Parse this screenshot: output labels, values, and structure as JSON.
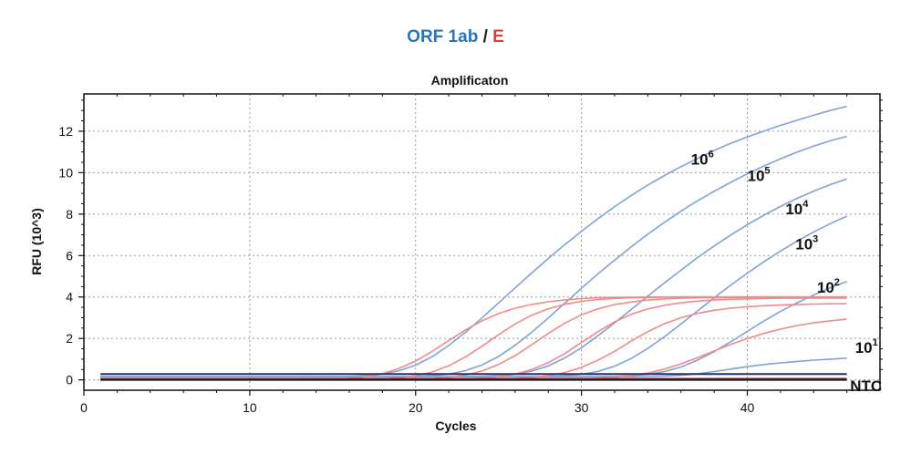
{
  "header": {
    "target_a": "ORF 1ab",
    "separator": "/",
    "target_b": "E",
    "target_a_color": "#2a75b8",
    "target_b_color": "#e53935"
  },
  "chart_data": {
    "type": "line",
    "title": "Amplificaton",
    "xlabel": "Cycles",
    "ylabel": "RFU (10^3)",
    "xlim": [
      0,
      48
    ],
    "ylim": [
      -0.5,
      13.8
    ],
    "xticks": [
      0,
      10,
      20,
      30,
      40
    ],
    "yticks": [
      0,
      2,
      4,
      6,
      8,
      10,
      12
    ],
    "grid": true,
    "grid_style": "dotted",
    "x": [
      1,
      2,
      3,
      4,
      5,
      6,
      7,
      8,
      9,
      10,
      11,
      12,
      13,
      14,
      15,
      16,
      17,
      18,
      19,
      20,
      21,
      22,
      23,
      24,
      25,
      26,
      27,
      28,
      29,
      30,
      31,
      32,
      33,
      34,
      35,
      36,
      37,
      38,
      39,
      40,
      41,
      42,
      43,
      44,
      45,
      46
    ],
    "series": [
      {
        "group": "ORF 1ab",
        "color": "#7fa3d6",
        "values": [
          0.15,
          0.15,
          0.15,
          0.15,
          0.15,
          0.15,
          0.15,
          0.15,
          0.15,
          0.15,
          0.15,
          0.15,
          0.15,
          0.16,
          0.16,
          0.17,
          0.2,
          0.28,
          0.44,
          0.71,
          1.12,
          1.66,
          2.29,
          2.99,
          3.71,
          4.44,
          5.16,
          5.86,
          6.53,
          7.17,
          7.78,
          8.36,
          8.9,
          9.4,
          9.86,
          10.29,
          10.69,
          11.07,
          11.41,
          11.72,
          12.01,
          12.28,
          12.53,
          12.77,
          13.0,
          13.2
        ]
      },
      {
        "group": "ORF 1ab",
        "color": "#7fa3d6",
        "values": [
          0.15,
          0.15,
          0.15,
          0.15,
          0.15,
          0.15,
          0.15,
          0.15,
          0.15,
          0.15,
          0.15,
          0.15,
          0.15,
          0.15,
          0.15,
          0.15,
          0.15,
          0.15,
          0.16,
          0.17,
          0.2,
          0.28,
          0.44,
          0.72,
          1.13,
          1.67,
          2.3,
          2.99,
          3.7,
          4.42,
          5.12,
          5.78,
          6.42,
          7.03,
          7.6,
          8.14,
          8.64,
          9.1,
          9.53,
          9.94,
          10.32,
          10.67,
          10.99,
          11.28,
          11.54,
          11.75
        ]
      },
      {
        "group": "ORF 1ab",
        "color": "#7fa3d6",
        "values": [
          0.15,
          0.15,
          0.15,
          0.15,
          0.15,
          0.15,
          0.15,
          0.15,
          0.15,
          0.15,
          0.15,
          0.15,
          0.15,
          0.15,
          0.15,
          0.15,
          0.15,
          0.15,
          0.15,
          0.15,
          0.15,
          0.15,
          0.16,
          0.17,
          0.2,
          0.27,
          0.42,
          0.68,
          1.06,
          1.55,
          2.13,
          2.75,
          3.4,
          4.04,
          4.68,
          5.3,
          5.9,
          6.46,
          6.99,
          7.49,
          7.95,
          8.37,
          8.76,
          9.11,
          9.42,
          9.7
        ]
      },
      {
        "group": "ORF 1ab",
        "color": "#7fa3d6",
        "values": [
          0.15,
          0.15,
          0.15,
          0.15,
          0.15,
          0.15,
          0.15,
          0.15,
          0.15,
          0.15,
          0.15,
          0.15,
          0.15,
          0.15,
          0.15,
          0.15,
          0.15,
          0.15,
          0.15,
          0.15,
          0.15,
          0.15,
          0.15,
          0.15,
          0.15,
          0.15,
          0.16,
          0.17,
          0.2,
          0.27,
          0.41,
          0.66,
          1.03,
          1.52,
          2.08,
          2.7,
          3.33,
          3.96,
          4.57,
          5.15,
          5.7,
          6.22,
          6.7,
          7.14,
          7.54,
          7.9
        ]
      },
      {
        "group": "ORF 1ab",
        "color": "#7fa3d6",
        "values": [
          0.15,
          0.15,
          0.15,
          0.15,
          0.15,
          0.15,
          0.15,
          0.15,
          0.15,
          0.15,
          0.15,
          0.15,
          0.15,
          0.15,
          0.15,
          0.15,
          0.15,
          0.15,
          0.15,
          0.15,
          0.15,
          0.15,
          0.15,
          0.15,
          0.15,
          0.15,
          0.15,
          0.15,
          0.15,
          0.15,
          0.16,
          0.17,
          0.2,
          0.27,
          0.4,
          0.62,
          0.95,
          1.36,
          1.84,
          2.34,
          2.84,
          3.3,
          3.72,
          4.1,
          4.45,
          4.75
        ]
      },
      {
        "group": "ORF 1ab",
        "color": "#7fa3d6",
        "values": [
          0.15,
          0.15,
          0.15,
          0.15,
          0.15,
          0.15,
          0.15,
          0.15,
          0.15,
          0.15,
          0.15,
          0.15,
          0.15,
          0.15,
          0.15,
          0.15,
          0.15,
          0.15,
          0.15,
          0.15,
          0.15,
          0.15,
          0.15,
          0.15,
          0.15,
          0.15,
          0.15,
          0.15,
          0.15,
          0.15,
          0.15,
          0.15,
          0.15,
          0.16,
          0.18,
          0.22,
          0.29,
          0.4,
          0.52,
          0.64,
          0.74,
          0.82,
          0.89,
          0.95,
          1.0,
          1.05
        ]
      },
      {
        "group": "E",
        "color": "#f08a8a",
        "values": [
          0.0,
          0.0,
          0.0,
          0.0,
          0.0,
          0.0,
          0.0,
          0.0,
          0.0,
          0.0,
          0.0,
          0.0,
          0.0,
          0.01,
          0.03,
          0.07,
          0.15,
          0.3,
          0.55,
          0.91,
          1.37,
          1.9,
          2.4,
          2.85,
          3.2,
          3.46,
          3.64,
          3.77,
          3.86,
          3.92,
          3.96,
          3.98,
          3.99,
          4.0,
          4.0,
          4.0,
          4.0,
          4.0,
          4.0,
          4.0,
          4.0,
          4.0,
          4.0,
          4.0,
          4.0,
          4.0
        ]
      },
      {
        "group": "E",
        "color": "#f08a8a",
        "values": [
          0.0,
          0.0,
          0.0,
          0.0,
          0.0,
          0.0,
          0.0,
          0.0,
          0.0,
          0.0,
          0.0,
          0.0,
          0.0,
          0.0,
          0.0,
          0.01,
          0.02,
          0.05,
          0.1,
          0.2,
          0.38,
          0.68,
          1.1,
          1.62,
          2.18,
          2.7,
          3.12,
          3.43,
          3.65,
          3.79,
          3.88,
          3.93,
          3.96,
          3.98,
          3.99,
          4.0,
          4.0,
          4.0,
          4.0,
          4.0,
          4.0,
          4.0,
          4.0,
          4.0,
          4.0,
          4.0
        ]
      },
      {
        "group": "E",
        "color": "#f08a8a",
        "values": [
          0.0,
          0.0,
          0.0,
          0.0,
          0.0,
          0.0,
          0.0,
          0.0,
          0.0,
          0.0,
          0.0,
          0.0,
          0.0,
          0.0,
          0.0,
          0.0,
          0.0,
          0.0,
          0.01,
          0.03,
          0.06,
          0.12,
          0.23,
          0.43,
          0.74,
          1.17,
          1.69,
          2.24,
          2.74,
          3.14,
          3.43,
          3.63,
          3.76,
          3.85,
          3.91,
          3.94,
          3.96,
          3.97,
          3.98,
          3.98,
          3.99,
          3.99,
          3.99,
          3.99,
          3.99,
          3.99
        ]
      },
      {
        "group": "E",
        "color": "#f08a8a",
        "values": [
          0.0,
          0.0,
          0.0,
          0.0,
          0.0,
          0.0,
          0.0,
          0.0,
          0.0,
          0.0,
          0.0,
          0.0,
          0.0,
          0.0,
          0.0,
          0.0,
          0.0,
          0.0,
          0.0,
          0.0,
          0.01,
          0.02,
          0.04,
          0.08,
          0.15,
          0.28,
          0.5,
          0.83,
          1.27,
          1.8,
          2.33,
          2.8,
          3.16,
          3.42,
          3.6,
          3.72,
          3.8,
          3.86,
          3.89,
          3.91,
          3.93,
          3.94,
          3.94,
          3.95,
          3.95,
          3.95
        ]
      },
      {
        "group": "E",
        "color": "#f08a8a",
        "values": [
          0.0,
          0.0,
          0.0,
          0.0,
          0.0,
          0.0,
          0.0,
          0.0,
          0.0,
          0.0,
          0.0,
          0.0,
          0.0,
          0.0,
          0.0,
          0.0,
          0.0,
          0.0,
          0.0,
          0.0,
          0.0,
          0.0,
          0.01,
          0.02,
          0.03,
          0.06,
          0.11,
          0.2,
          0.36,
          0.6,
          0.95,
          1.38,
          1.87,
          2.33,
          2.71,
          3.0,
          3.21,
          3.36,
          3.46,
          3.53,
          3.58,
          3.61,
          3.64,
          3.66,
          3.67,
          3.68
        ]
      },
      {
        "group": "E",
        "color": "#f08a8a",
        "values": [
          0.0,
          0.0,
          0.0,
          0.0,
          0.0,
          0.0,
          0.0,
          0.0,
          0.0,
          0.0,
          0.0,
          0.0,
          0.0,
          0.0,
          0.0,
          0.0,
          0.0,
          0.0,
          0.0,
          0.0,
          0.0,
          0.0,
          0.0,
          0.0,
          0.0,
          0.0,
          0.0,
          0.01,
          0.02,
          0.04,
          0.07,
          0.12,
          0.2,
          0.33,
          0.52,
          0.77,
          1.07,
          1.39,
          1.71,
          2.0,
          2.24,
          2.45,
          2.62,
          2.75,
          2.85,
          2.93
        ]
      }
    ],
    "ntc_lines": [
      {
        "color": "#27306e",
        "value": 0.28
      },
      {
        "color": "#8b1a2b",
        "value": 0.05
      },
      {
        "color": "#1b1b1b",
        "value": 0.0
      }
    ],
    "annotations": [
      {
        "base": "10",
        "exp": "6",
        "x": 36.6,
        "y": 10.4
      },
      {
        "base": "10",
        "exp": "5",
        "x": 40.0,
        "y": 9.6
      },
      {
        "base": "10",
        "exp": "4",
        "x": 42.3,
        "y": 8.0
      },
      {
        "base": "10",
        "exp": "3",
        "x": 42.9,
        "y": 6.3
      },
      {
        "base": "10",
        "exp": "2",
        "x": 44.2,
        "y": 4.2
      },
      {
        "base": "10",
        "exp": "1",
        "x": 46.5,
        "y": 1.3
      },
      {
        "base": "NTC",
        "exp": "",
        "x": 46.2,
        "y": -0.55
      }
    ]
  }
}
